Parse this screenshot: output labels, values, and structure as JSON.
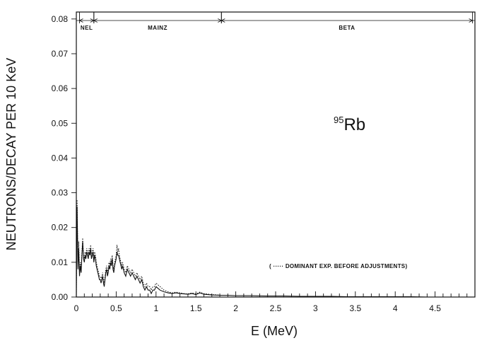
{
  "chart_data": {
    "type": "line",
    "title": "",
    "xlabel": "E  (MeV)",
    "ylabel": "NEUTRONS/DECAY PER 10 KeV",
    "xlim": [
      0,
      5
    ],
    "ylim": [
      0,
      0.082
    ],
    "x_ticks": [
      "0",
      "0.5",
      "1",
      "1.5",
      "2",
      "2.5",
      "3",
      "3.5",
      "4",
      "4.5"
    ],
    "x_tick_values": [
      0,
      0.5,
      1,
      1.5,
      2,
      2.5,
      3,
      3.5,
      4,
      4.5
    ],
    "y_ticks": [
      "0.00",
      "0.01",
      "0.02",
      "0.03",
      "0.04",
      "0.05",
      "0.06",
      "0.07",
      "0.08"
    ],
    "y_tick_values": [
      0,
      0.01,
      0.02,
      0.03,
      0.04,
      0.05,
      0.06,
      0.07,
      0.08
    ],
    "x_minor_step": 0.1,
    "grid": false,
    "isotope": {
      "mass": "95",
      "symbol": "Rb"
    },
    "regions": [
      {
        "label": "NEL",
        "start": 0.04,
        "end": 0.22
      },
      {
        "label": "MAINZ",
        "start": 0.22,
        "end": 1.82
      },
      {
        "label": "BETA",
        "start": 1.82,
        "end": 4.97
      }
    ],
    "annotation": "( ····· DOMINANT EXP. BEFORE ADJUSTMENTS)",
    "series": [
      {
        "style": "solid",
        "x": [
          0.0,
          0.01,
          0.02,
          0.03,
          0.04,
          0.05,
          0.06,
          0.07,
          0.08,
          0.09,
          0.1,
          0.11,
          0.12,
          0.13,
          0.14,
          0.15,
          0.16,
          0.17,
          0.18,
          0.19,
          0.2,
          0.21,
          0.22,
          0.23,
          0.24,
          0.25,
          0.26,
          0.27,
          0.28,
          0.29,
          0.3,
          0.31,
          0.32,
          0.33,
          0.34,
          0.35,
          0.36,
          0.37,
          0.38,
          0.39,
          0.4,
          0.41,
          0.42,
          0.43,
          0.44,
          0.45,
          0.46,
          0.47,
          0.48,
          0.49,
          0.5,
          0.51,
          0.52,
          0.53,
          0.54,
          0.55,
          0.56,
          0.57,
          0.58,
          0.59,
          0.6,
          0.62,
          0.64,
          0.66,
          0.68,
          0.7,
          0.72,
          0.74,
          0.76,
          0.78,
          0.8,
          0.82,
          0.84,
          0.86,
          0.88,
          0.9,
          0.92,
          0.94,
          0.96,
          0.98,
          1.0,
          1.05,
          1.1,
          1.15,
          1.2,
          1.25,
          1.3,
          1.35,
          1.4,
          1.45,
          1.5,
          1.55,
          1.6,
          1.7,
          1.8,
          1.9,
          2.0,
          2.2,
          2.4,
          2.6,
          2.8,
          3.0,
          3.2,
          3.4,
          3.6,
          3.8,
          4.0,
          4.2,
          4.4,
          4.6,
          4.8,
          4.95
        ],
        "y": [
          0.0,
          0.026,
          0.008,
          0.014,
          0.006,
          0.009,
          0.007,
          0.012,
          0.016,
          0.011,
          0.01,
          0.012,
          0.011,
          0.013,
          0.012,
          0.011,
          0.013,
          0.012,
          0.014,
          0.011,
          0.012,
          0.013,
          0.01,
          0.012,
          0.011,
          0.009,
          0.008,
          0.007,
          0.006,
          0.005,
          0.005,
          0.004,
          0.005,
          0.006,
          0.004,
          0.003,
          0.005,
          0.007,
          0.008,
          0.006,
          0.007,
          0.009,
          0.008,
          0.01,
          0.009,
          0.011,
          0.008,
          0.007,
          0.009,
          0.01,
          0.011,
          0.013,
          0.012,
          0.012,
          0.011,
          0.01,
          0.009,
          0.008,
          0.009,
          0.008,
          0.007,
          0.006,
          0.008,
          0.007,
          0.006,
          0.007,
          0.006,
          0.005,
          0.006,
          0.005,
          0.004,
          0.005,
          0.003,
          0.002,
          0.003,
          0.002,
          0.002,
          0.001,
          0.002,
          0.002,
          0.003,
          0.002,
          0.0015,
          0.0012,
          0.001,
          0.0012,
          0.001,
          0.0009,
          0.0008,
          0.001,
          0.0007,
          0.0012,
          0.0008,
          0.0006,
          0.0005,
          0.0005,
          0.0004,
          0.0004,
          0.0003,
          0.0003,
          0.0002,
          0.0002,
          0.0002,
          0.0001,
          0.0001,
          0.0001,
          0.0001,
          0.0001,
          0.0,
          0.0,
          0.0,
          0.0
        ]
      },
      {
        "style": "dotted",
        "x": [
          0.0,
          0.01,
          0.02,
          0.03,
          0.04,
          0.05,
          0.06,
          0.07,
          0.08,
          0.09,
          0.1,
          0.11,
          0.12,
          0.13,
          0.14,
          0.15,
          0.16,
          0.17,
          0.18,
          0.19,
          0.2,
          0.21,
          0.22,
          0.23,
          0.24,
          0.25,
          0.26,
          0.27,
          0.28,
          0.29,
          0.3,
          0.31,
          0.32,
          0.33,
          0.34,
          0.35,
          0.36,
          0.37,
          0.38,
          0.39,
          0.4,
          0.41,
          0.42,
          0.43,
          0.44,
          0.45,
          0.46,
          0.47,
          0.48,
          0.49,
          0.5,
          0.51,
          0.52,
          0.53,
          0.54,
          0.55,
          0.56,
          0.57,
          0.58,
          0.59,
          0.6,
          0.62,
          0.64,
          0.66,
          0.68,
          0.7,
          0.72,
          0.74,
          0.76,
          0.78,
          0.8,
          0.82,
          0.84,
          0.86,
          0.88,
          0.9,
          0.92,
          0.94,
          0.96,
          0.98,
          1.0,
          1.05,
          1.1,
          1.15,
          1.2,
          1.25,
          1.3,
          1.35,
          1.4,
          1.45,
          1.5,
          1.55,
          1.6,
          1.7,
          1.8
        ],
        "y": [
          0.0,
          0.028,
          0.01,
          0.016,
          0.007,
          0.01,
          0.008,
          0.013,
          0.017,
          0.012,
          0.011,
          0.013,
          0.012,
          0.014,
          0.013,
          0.012,
          0.014,
          0.013,
          0.015,
          0.012,
          0.013,
          0.014,
          0.011,
          0.013,
          0.012,
          0.01,
          0.009,
          0.008,
          0.007,
          0.006,
          0.006,
          0.005,
          0.006,
          0.007,
          0.005,
          0.004,
          0.006,
          0.008,
          0.009,
          0.007,
          0.008,
          0.01,
          0.009,
          0.011,
          0.01,
          0.012,
          0.009,
          0.008,
          0.01,
          0.011,
          0.012,
          0.015,
          0.013,
          0.014,
          0.012,
          0.011,
          0.01,
          0.009,
          0.01,
          0.009,
          0.008,
          0.007,
          0.009,
          0.008,
          0.007,
          0.008,
          0.007,
          0.006,
          0.007,
          0.006,
          0.005,
          0.006,
          0.004,
          0.003,
          0.004,
          0.003,
          0.003,
          0.002,
          0.003,
          0.003,
          0.004,
          0.003,
          0.002,
          0.0015,
          0.0012,
          0.0014,
          0.0012,
          0.001,
          0.0009,
          0.0012,
          0.0009,
          0.0014,
          0.001,
          0.0007,
          0.0006
        ]
      }
    ]
  }
}
